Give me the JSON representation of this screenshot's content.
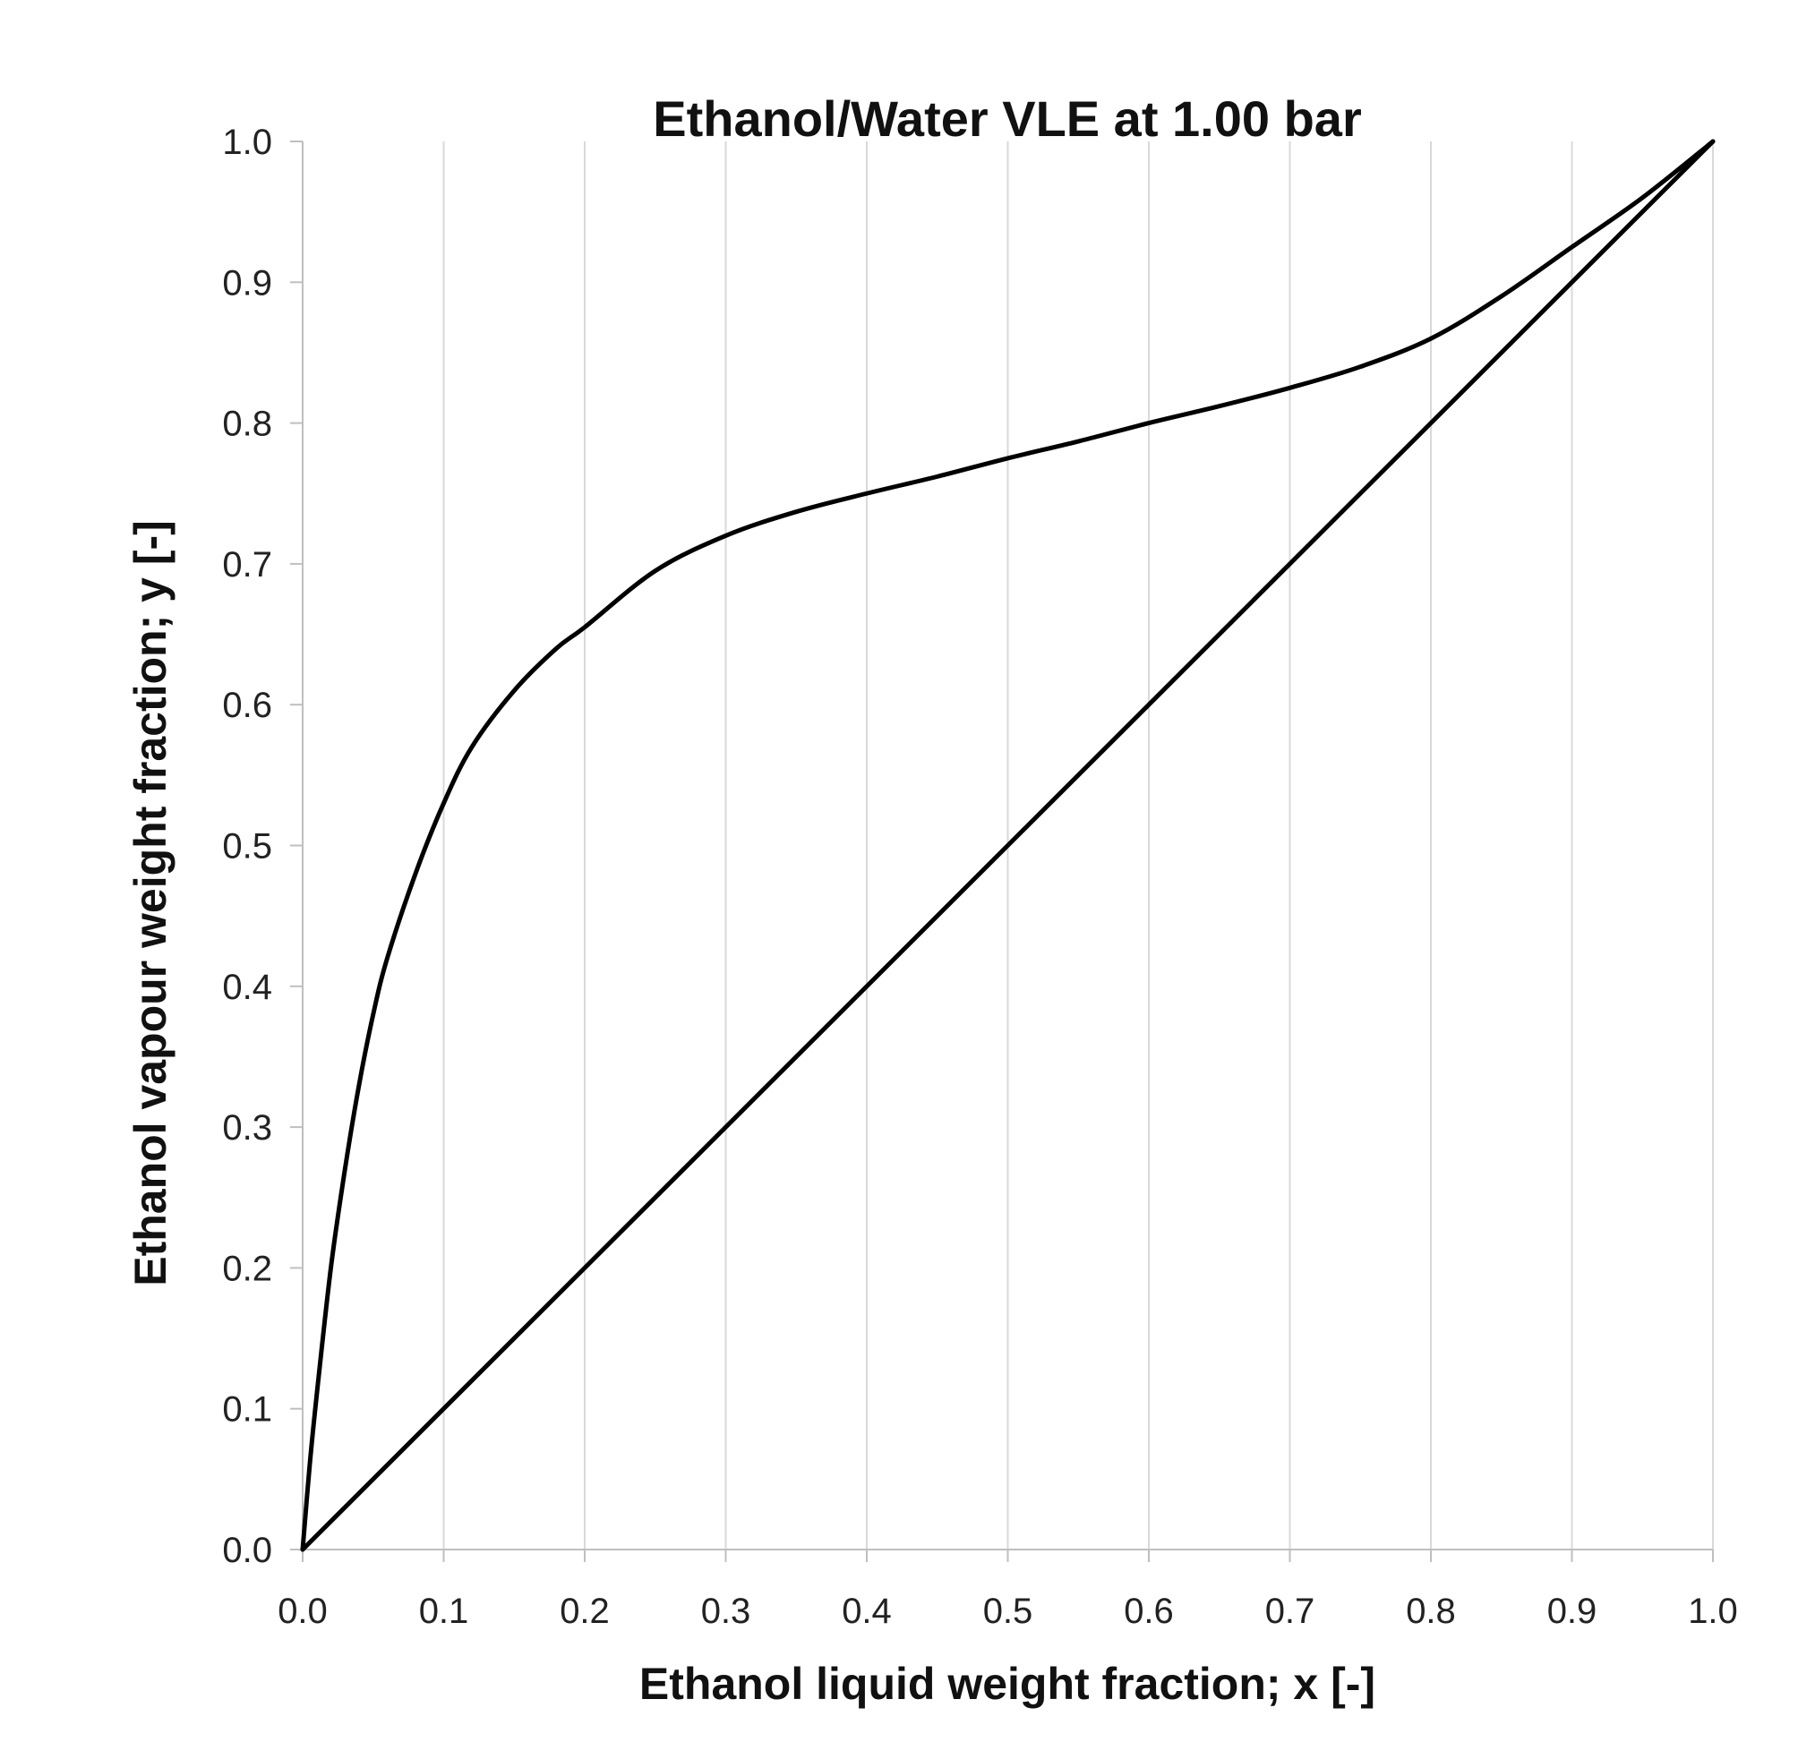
{
  "chart_data": {
    "type": "line",
    "title": "Ethanol/Water VLE at 1.00 bar",
    "xlabel": "Ethanol liquid weight fraction; x [-]",
    "ylabel": "Ethanol vapour weight fraction; y [-]",
    "xlim": [
      0,
      1
    ],
    "ylim": [
      0,
      1
    ],
    "grid": "vertical gridlines only",
    "legend": "none",
    "x_ticks": [
      "0.0",
      "0.1",
      "0.2",
      "0.3",
      "0.4",
      "0.5",
      "0.6",
      "0.7",
      "0.8",
      "0.9",
      "1.0"
    ],
    "y_ticks": [
      "0.0",
      "0.1",
      "0.2",
      "0.3",
      "0.4",
      "0.5",
      "0.6",
      "0.7",
      "0.8",
      "0.9",
      "1.0"
    ],
    "series": [
      {
        "color": "#000000",
        "x": [
          0.0,
          0.005,
          0.01,
          0.02,
          0.03,
          0.04,
          0.05,
          0.06,
          0.08,
          0.1,
          0.12,
          0.15,
          0.18,
          0.2,
          0.25,
          0.3,
          0.35,
          0.4,
          0.45,
          0.5,
          0.55,
          0.6,
          0.65,
          0.7,
          0.75,
          0.8,
          0.85,
          0.9,
          0.95,
          1.0
        ],
        "y": [
          0.0,
          0.06,
          0.11,
          0.2,
          0.27,
          0.33,
          0.38,
          0.42,
          0.48,
          0.53,
          0.57,
          0.61,
          0.64,
          0.655,
          0.695,
          0.72,
          0.737,
          0.75,
          0.762,
          0.775,
          0.787,
          0.8,
          0.812,
          0.825,
          0.84,
          0.86,
          0.89,
          0.925,
          0.96,
          1.0
        ]
      },
      {
        "color": "#000000",
        "x": [
          0.0,
          1.0
        ],
        "y": [
          0.0,
          1.0
        ]
      }
    ]
  }
}
